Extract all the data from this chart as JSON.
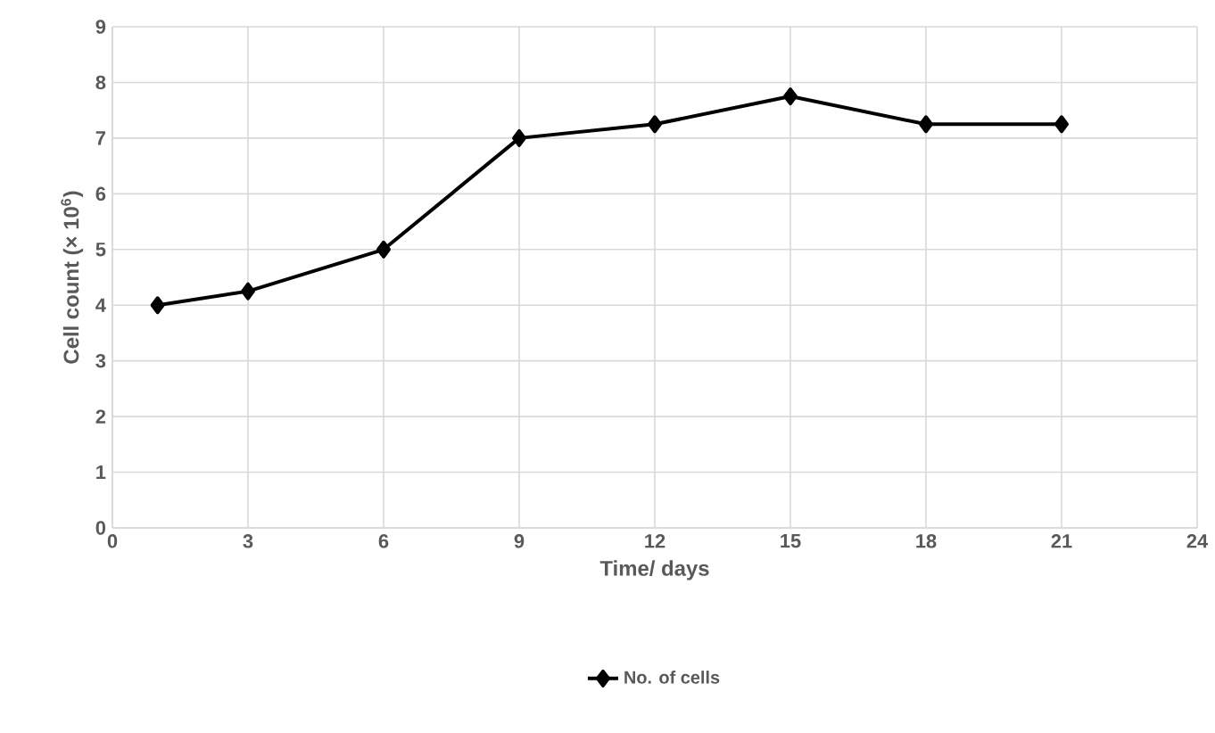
{
  "chart_data": {
    "type": "line",
    "xlabel": "Time/ days",
    "ylabel": "Cell count (× 10$^{6}$)",
    "x": [
      1,
      3,
      6,
      9,
      12,
      15,
      18,
      21
    ],
    "series": [
      {
        "name": "No. of cells",
        "color": "#000000",
        "values": [
          4,
          4.25,
          5,
          7,
          7.25,
          7.75,
          7.25,
          7.25
        ]
      }
    ],
    "xlim": [
      0,
      24
    ],
    "xticks": [
      0,
      3,
      6,
      9,
      12,
      15,
      18,
      21,
      24
    ],
    "ylim": [
      0,
      9
    ],
    "yticks": [
      0,
      1,
      2,
      3,
      4,
      5,
      6,
      7,
      8,
      9
    ],
    "grid": true,
    "legend": "bottom",
    "marker": "diamond",
    "line_style": "solid"
  }
}
